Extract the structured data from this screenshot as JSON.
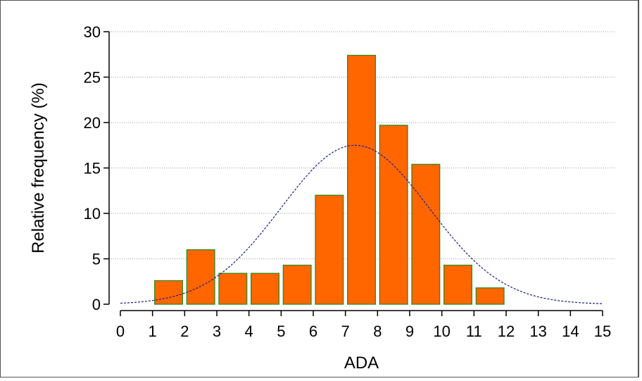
{
  "chart_data": {
    "type": "bar",
    "xlabel": "ADA",
    "ylabel": "Relative frequency (%)",
    "xlim": [
      0,
      15
    ],
    "ylim": [
      0,
      30
    ],
    "x_ticks": [
      0,
      1,
      2,
      3,
      4,
      5,
      6,
      7,
      8,
      9,
      10,
      11,
      12,
      13,
      14,
      15
    ],
    "y_ticks": [
      0,
      5,
      10,
      15,
      20,
      25,
      30
    ],
    "grid": "horizontal-dotted",
    "bins": [
      {
        "x0": 1,
        "x1": 2,
        "value": 2.6
      },
      {
        "x0": 2,
        "x1": 3,
        "value": 6.0
      },
      {
        "x0": 3,
        "x1": 4,
        "value": 3.4
      },
      {
        "x0": 4,
        "x1": 5,
        "value": 3.4
      },
      {
        "x0": 5,
        "x1": 6,
        "value": 4.3
      },
      {
        "x0": 6,
        "x1": 7,
        "value": 12.0
      },
      {
        "x0": 7,
        "x1": 8,
        "value": 27.4
      },
      {
        "x0": 8,
        "x1": 9,
        "value": 19.7
      },
      {
        "x0": 9,
        "x1": 10,
        "value": 15.4
      },
      {
        "x0": 10,
        "x1": 11,
        "value": 4.3
      },
      {
        "x0": 11,
        "x1": 12,
        "value": 1.8
      }
    ],
    "normal_curve": {
      "mean": 7.3,
      "sd": 2.3,
      "peak": 17.5
    },
    "colors": {
      "bar_fill": "#ff6600",
      "bar_edge": "#2e8b20",
      "curve": "#1a1a8c",
      "grid": "#999999",
      "axis": "#000000"
    }
  }
}
